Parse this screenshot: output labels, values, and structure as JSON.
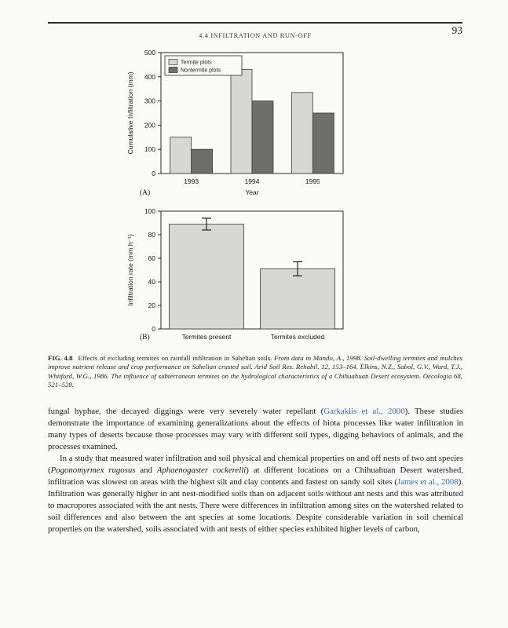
{
  "header": {
    "section": "4.4  INFILTRATION AND RUN-OFF",
    "page_number": "93"
  },
  "figure": {
    "panel_labels": {
      "a": "(A)",
      "b": "(B)"
    },
    "caption": {
      "label": "FIG. 4.8",
      "segments": [
        {
          "style": "normal",
          "text": "Effects of excluding termites on rainfall infiltration in Sahelian soils. "
        },
        {
          "style": "italic",
          "text": "From data in Mando, A., 1998. Soil-dwelling termites and mulches improve nutrient release and crop performance on Sahelian crusted soil. Arid Soil Res. Rehabil. 12, 153–164. Elkins, N.Z., Sabol, G.V., Ward, T.J., Whitford, W.G., 1986. The influence of subterranean termites on the hydrological characteristics of a Chihuahuan Desert ecosystem. Oecologia 68, 521–528."
        }
      ]
    }
  },
  "chart_data": [
    {
      "type": "bar",
      "title": "",
      "categories": [
        "1993",
        "1994",
        "1995"
      ],
      "series": [
        {
          "name": "Termite plots",
          "color": "#d7d7d4",
          "values": [
            150,
            430,
            335
          ]
        },
        {
          "name": "Nontermite plots",
          "color": "#6e6e6b",
          "values": [
            100,
            300,
            250
          ]
        }
      ],
      "xlabel": "Year",
      "ylabel": "Cumulative Infiltration (mm)",
      "ylim": [
        0,
        500
      ],
      "yticks": [
        0,
        100,
        200,
        300,
        400,
        500
      ],
      "legend_position": "top-left",
      "grid": false
    },
    {
      "type": "bar",
      "title": "",
      "categories": [
        "Termites present",
        "Termites excluded"
      ],
      "series": [
        {
          "name": "Infiltration rate",
          "color": "#d7d7d4",
          "values": [
            89,
            51
          ],
          "errors": [
            5,
            6
          ]
        }
      ],
      "xlabel": "",
      "ylabel": "Infiltration rate (mm h⁻¹)",
      "ylim": [
        0,
        100
      ],
      "yticks": [
        0,
        20,
        40,
        60,
        80,
        100
      ],
      "legend_position": "none",
      "grid": false
    }
  ],
  "body": {
    "paragraphs": [
      {
        "indent": false,
        "segments": [
          {
            "style": "normal",
            "text": "fungal hyphae, the decayed diggings were very severely water repellant ("
          },
          {
            "style": "link",
            "text": "Garkaklis et al., 2000"
          },
          {
            "style": "normal",
            "text": "). These studies demonstrate the importance of examining generalizations about the effects of biota processes like water infiltration in many types of deserts because those processes may vary with different soil types, digging behaviors of animals, and the processes examined."
          }
        ]
      },
      {
        "indent": true,
        "segments": [
          {
            "style": "normal",
            "text": "In a study that measured water infiltration and soil physical and chemical properties on and off nests of two ant species ("
          },
          {
            "style": "italic",
            "text": "Pogonomyrmex rugosus"
          },
          {
            "style": "normal",
            "text": " and "
          },
          {
            "style": "italic",
            "text": "Aphaenogaster cockerelli"
          },
          {
            "style": "normal",
            "text": ") at different locations on a Chihuahuan Desert watershed, infiltration was slowest on areas with the highest silt and clay contents and fastest on sandy soil sites ("
          },
          {
            "style": "link",
            "text": "James et al., 2008"
          },
          {
            "style": "normal",
            "text": "). Infiltration was generally higher in ant nest-modified soils than on adjacent soils without ant nests and this was attributed to macropores associated with the ant nests. There were differences in infiltration among sites on the watershed related to soil differences and also between the ant species at some locations. Despite considerable variation in soil chemical properties on the watershed, soils associated with ant nests of either species exhibited higher levels of carbon,"
          }
        ]
      }
    ]
  },
  "colors": {
    "link": "#3c6cb4",
    "page_background": "#fafaf8",
    "bar_light": "#d7d7d4",
    "bar_dark": "#6e6e6b"
  }
}
